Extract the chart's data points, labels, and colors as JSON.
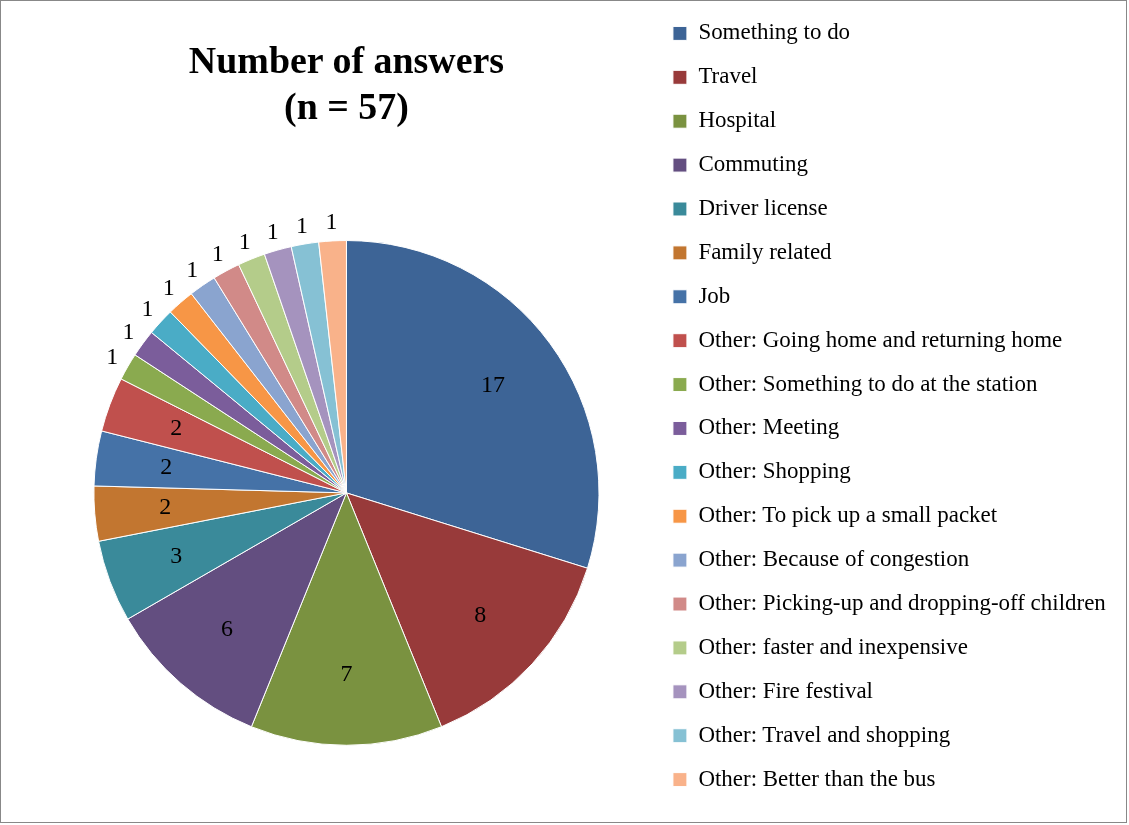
{
  "chart_data": {
    "type": "pie",
    "title": "Number of answers\n(n = 57)",
    "categories": [
      "Something to do",
      "Travel",
      "Hospital",
      "Commuting",
      "Driver license",
      "Family related",
      "Job",
      "Other: Going home and returning home",
      "Other: Something to do at the station",
      "Other: Meeting",
      "Other: Shopping",
      "Other: To pick up a small packet",
      "Other: Because of congestion",
      "Other: Picking-up and dropping-off children",
      "Other: faster and inexpensive",
      "Other: Fire festival",
      "Other: Travel and shopping",
      "Other: Better than the bus"
    ],
    "values": [
      17,
      8,
      7,
      6,
      3,
      2,
      2,
      2,
      1,
      1,
      1,
      1,
      1,
      1,
      1,
      1,
      1,
      1
    ],
    "colors": [
      "#3d6496",
      "#983a3a",
      "#7a9240",
      "#634e80",
      "#3a8a9a",
      "#c27630",
      "#4572a7",
      "#c0504d",
      "#8aaa4f",
      "#7b5d9b",
      "#4aacc6",
      "#f79646",
      "#8aa4cf",
      "#d18a88",
      "#b4cc8a",
      "#a593be",
      "#86c1d4",
      "#f9b28a"
    ],
    "data_labels": true,
    "legend": "right"
  }
}
